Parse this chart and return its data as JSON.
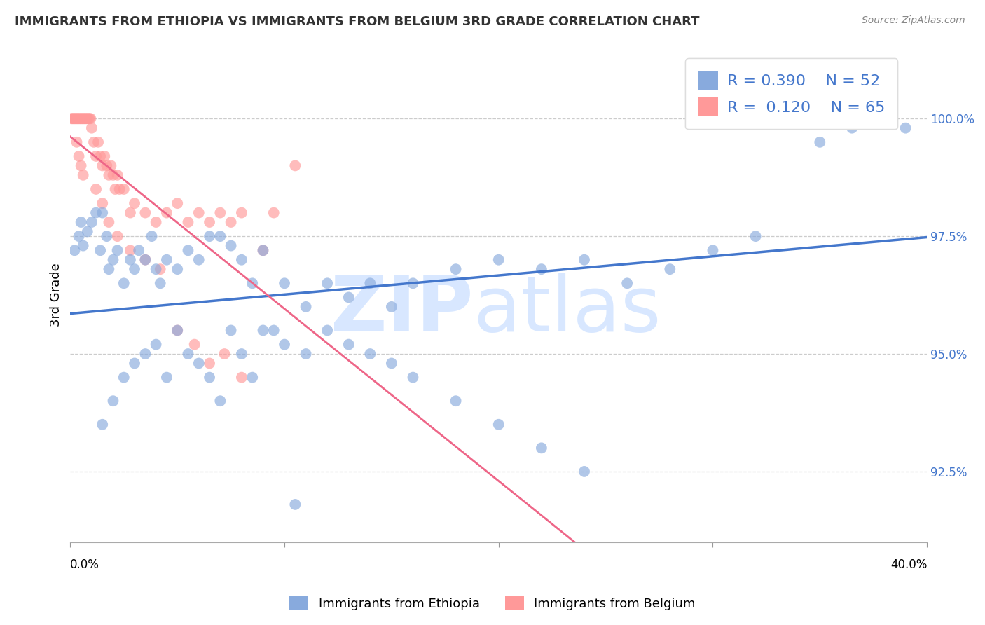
{
  "title": "IMMIGRANTS FROM ETHIOPIA VS IMMIGRANTS FROM BELGIUM 3RD GRADE CORRELATION CHART",
  "source": "Source: ZipAtlas.com",
  "ylabel": "3rd Grade",
  "xlim": [
    0.0,
    40.0
  ],
  "ylim": [
    91.0,
    101.5
  ],
  "legend_r_blue": "0.390",
  "legend_n_blue": "52",
  "legend_r_pink": "0.120",
  "legend_n_pink": "65",
  "legend_label_blue": "Immigrants from Ethiopia",
  "legend_label_pink": "Immigrants from Belgium",
  "blue_scatter_color": "#88AADD",
  "pink_scatter_color": "#FF9999",
  "blue_line_color": "#4477CC",
  "pink_line_color": "#EE6688",
  "grid_color": "#CCCCCC",
  "ytick_values": [
    92.5,
    95.0,
    97.5,
    100.0
  ],
  "ytick_labels": [
    "92.5%",
    "95.0%",
    "97.5%",
    "100.0%"
  ],
  "ethiopia_x": [
    0.2,
    0.4,
    0.5,
    0.6,
    0.8,
    1.0,
    1.2,
    1.4,
    1.5,
    1.7,
    1.8,
    2.0,
    2.2,
    2.5,
    2.8,
    3.0,
    3.2,
    3.5,
    3.8,
    4.0,
    4.2,
    4.5,
    5.0,
    5.5,
    6.0,
    7.0,
    7.5,
    8.0,
    8.5,
    9.0,
    10.0,
    11.0,
    12.0,
    13.0,
    14.0,
    15.0,
    16.0,
    18.0,
    20.0,
    22.0,
    24.0,
    26.0,
    28.0,
    30.0,
    32.0,
    35.0,
    36.5,
    37.5,
    38.0,
    39.0,
    6.5,
    9.5
  ],
  "ethiopia_y": [
    97.2,
    97.5,
    97.8,
    97.3,
    97.6,
    97.8,
    98.0,
    97.2,
    98.0,
    97.5,
    96.8,
    97.0,
    97.2,
    96.5,
    97.0,
    96.8,
    97.2,
    97.0,
    97.5,
    96.8,
    96.5,
    97.0,
    96.8,
    97.2,
    97.0,
    97.5,
    97.3,
    97.0,
    96.5,
    97.2,
    96.5,
    96.0,
    96.5,
    96.2,
    96.5,
    96.0,
    96.5,
    96.8,
    97.0,
    96.8,
    97.0,
    96.5,
    96.8,
    97.2,
    97.5,
    99.5,
    99.8,
    100.2,
    100.0,
    99.8,
    97.5,
    95.5
  ],
  "ethiopia_y_low": [
    93.5,
    94.0,
    94.5,
    94.8,
    95.0,
    95.2,
    94.5,
    95.5,
    95.0,
    94.8,
    94.5,
    94.0,
    95.5,
    95.0,
    94.5,
    95.5,
    95.2,
    95.0,
    95.5,
    95.2,
    95.0,
    94.8,
    94.5,
    94.0,
    93.5,
    93.0,
    92.5,
    91.8
  ],
  "ethiopia_x_low": [
    1.5,
    2.0,
    2.5,
    3.0,
    3.5,
    4.0,
    4.5,
    5.0,
    5.5,
    6.0,
    6.5,
    7.0,
    7.5,
    8.0,
    8.5,
    9.0,
    10.0,
    11.0,
    12.0,
    13.0,
    14.0,
    15.0,
    16.0,
    18.0,
    20.0,
    22.0,
    24.0,
    10.5
  ],
  "belgium_x": [
    0.05,
    0.1,
    0.15,
    0.2,
    0.25,
    0.3,
    0.35,
    0.4,
    0.45,
    0.5,
    0.55,
    0.6,
    0.65,
    0.7,
    0.75,
    0.8,
    0.85,
    0.9,
    0.95,
    1.0,
    1.1,
    1.2,
    1.3,
    1.4,
    1.5,
    1.6,
    1.7,
    1.8,
    1.9,
    2.0,
    2.1,
    2.2,
    2.3,
    2.5,
    2.8,
    3.0,
    3.5,
    4.0,
    4.5,
    5.0,
    5.5,
    6.0,
    6.5,
    7.0,
    7.5,
    8.0,
    0.3,
    0.4,
    0.5,
    0.6,
    1.2,
    1.5,
    1.8,
    2.2,
    2.8,
    3.5,
    4.2,
    5.0,
    5.8,
    6.5,
    7.2,
    8.0,
    9.0,
    9.5,
    10.5
  ],
  "belgium_y": [
    100.0,
    100.0,
    100.0,
    100.0,
    100.0,
    100.0,
    100.0,
    100.0,
    100.0,
    100.0,
    100.0,
    100.0,
    100.0,
    100.0,
    100.0,
    100.0,
    100.0,
    100.0,
    100.0,
    99.8,
    99.5,
    99.2,
    99.5,
    99.2,
    99.0,
    99.2,
    99.0,
    98.8,
    99.0,
    98.8,
    98.5,
    98.8,
    98.5,
    98.5,
    98.0,
    98.2,
    98.0,
    97.8,
    98.0,
    98.2,
    97.8,
    98.0,
    97.8,
    98.0,
    97.8,
    98.0,
    99.5,
    99.2,
    99.0,
    98.8,
    98.5,
    98.2,
    97.8,
    97.5,
    97.2,
    97.0,
    96.8,
    95.5,
    95.2,
    94.8,
    95.0,
    94.5,
    97.2,
    98.0,
    99.0
  ]
}
